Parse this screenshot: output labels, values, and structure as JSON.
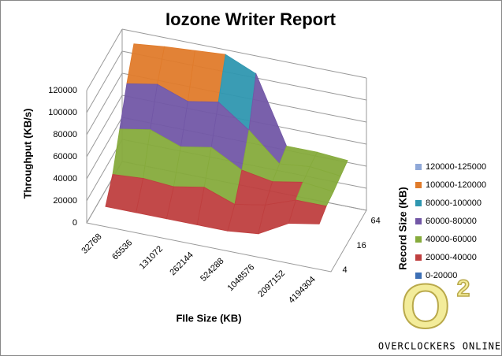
{
  "chart_data": {
    "type": "surface",
    "title": "Iozone Writer Report",
    "z_label": "Throughput (KB/s)",
    "x_label": "FIle Size (KB)",
    "depth_label": "Record Size (KB)",
    "categories": [
      "32768",
      "65536",
      "131072",
      "262144",
      "524288",
      "1048576",
      "2097152",
      "4194304"
    ],
    "depth_categories": [
      "4",
      null,
      "16",
      null,
      "64"
    ],
    "series": [
      {
        "values": [
          12000,
          12000,
          12000,
          12000,
          12000,
          15000,
          30000,
          35000
        ]
      },
      {
        "values": [
          30000,
          32000,
          30000,
          35000,
          25000,
          30000,
          40000,
          40000
        ]
      },
      {
        "values": [
          60000,
          65000,
          55000,
          60000,
          45000,
          40000,
          45000,
          42000
        ]
      },
      {
        "values": [
          90000,
          95000,
          85000,
          90000,
          70000,
          45000,
          48000,
          45000
        ]
      },
      {
        "values": [
          115000,
          118000,
          120000,
          122000,
          110000,
          50000,
          50000,
          48000
        ]
      }
    ],
    "zlim": [
      0,
      120000
    ],
    "zticks": [
      0,
      20000,
      40000,
      60000,
      80000,
      100000,
      120000
    ],
    "grid": true,
    "bands": [
      {
        "from": 120000,
        "to": 125000,
        "label": "120000-125000",
        "color": "#8fa8d8"
      },
      {
        "from": 100000,
        "to": 120000,
        "label": "100000-120000",
        "color": "#e07b2b"
      },
      {
        "from": 80000,
        "to": 100000,
        "label": "80000-100000",
        "color": "#2f97b0"
      },
      {
        "from": 60000,
        "to": 80000,
        "label": "60000-80000",
        "color": "#7257a6"
      },
      {
        "from": 40000,
        "to": 60000,
        "label": "40000-60000",
        "color": "#86ab3c"
      },
      {
        "from": 20000,
        "to": 40000,
        "label": "20000-40000",
        "color": "#bf3f3f"
      },
      {
        "from": 0,
        "to": 20000,
        "label": "0-20000",
        "color": "#3d6fb5"
      }
    ]
  },
  "branding": {
    "logo": "O",
    "logo_sup": "2",
    "name": "OVERCLOCKERS ONLINE"
  }
}
